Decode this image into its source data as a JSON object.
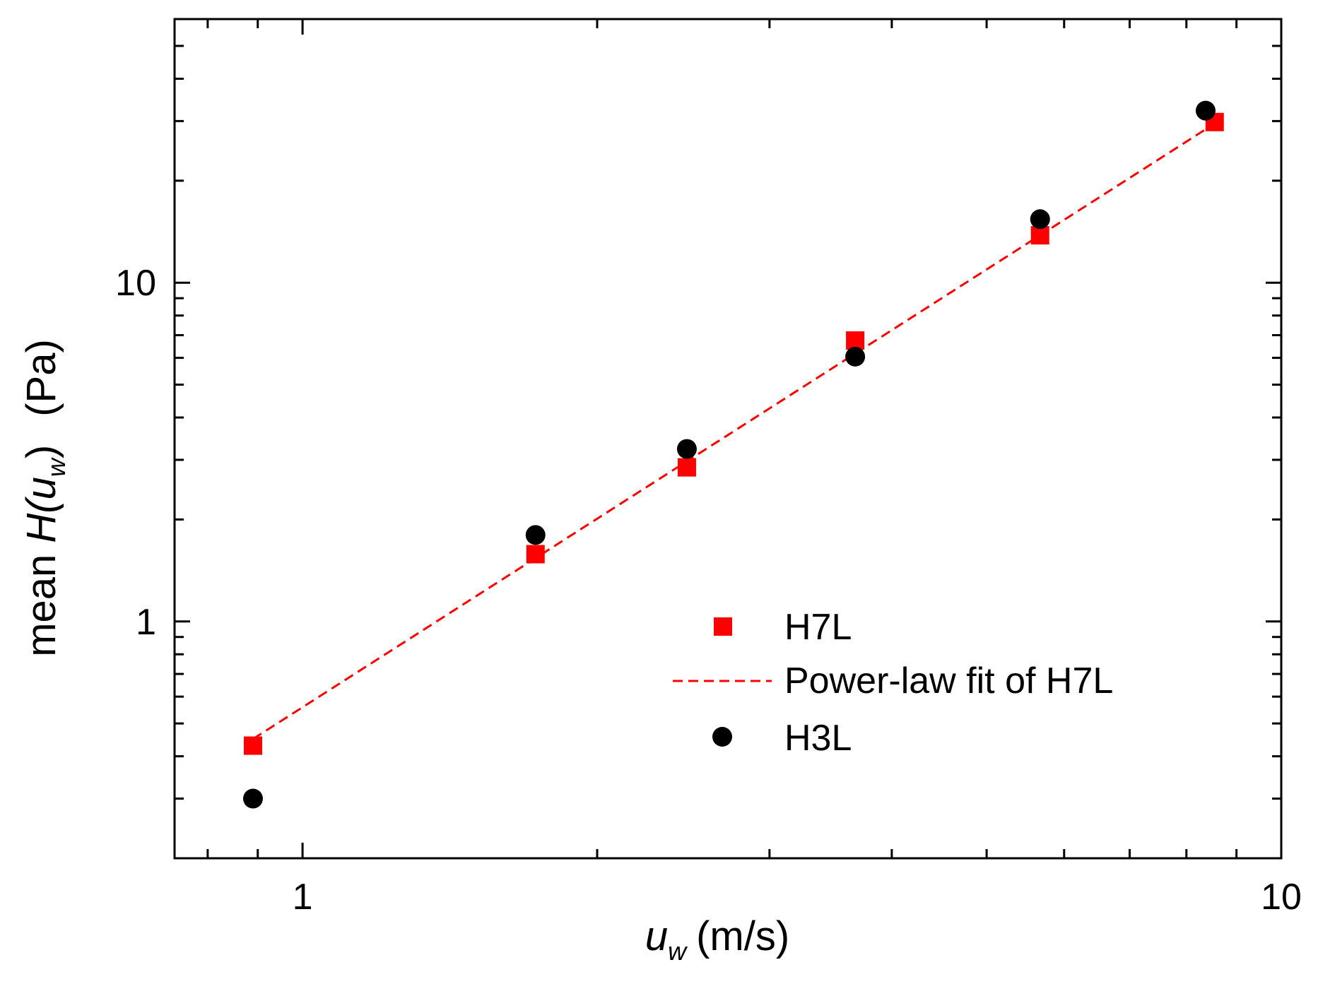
{
  "chart_data": {
    "type": "scatter",
    "xscale": "log",
    "yscale": "log",
    "xlim": [
      0.74,
      10
    ],
    "ylim": [
      0.2,
      60
    ],
    "xlabel": {
      "symbol": "u",
      "subscript": "w",
      "unit": "(m/s)"
    },
    "ylabel": {
      "prefix": "mean ",
      "func": "H(",
      "symbol": "u",
      "subscript": "w",
      "close": ")",
      "unit": "(Pa)"
    },
    "x_tick_labels": [
      {
        "value": 1,
        "label": "1"
      },
      {
        "value": 10,
        "label": "10"
      }
    ],
    "y_tick_labels": [
      {
        "value": 1,
        "label": "1"
      },
      {
        "value": 10,
        "label": "10"
      }
    ],
    "legend_position": "bottom-right",
    "series": [
      {
        "name": "H7L",
        "marker": "square",
        "color": "#ff0000",
        "x": [
          0.89,
          1.73,
          2.47,
          3.67,
          5.67,
          8.55
        ],
        "y": [
          0.43,
          1.58,
          2.85,
          6.75,
          13.8,
          29.8
        ]
      },
      {
        "name": "Power-law fit of H7L",
        "line": "dashed",
        "color": "#ff0000",
        "x": [
          0.89,
          8.55
        ],
        "y": [
          0.45,
          29.5
        ]
      },
      {
        "name": "H3L",
        "marker": "circle",
        "color": "#000000",
        "x": [
          0.89,
          1.73,
          2.47,
          3.67,
          5.67,
          8.37
        ],
        "y": [
          0.3,
          1.8,
          3.23,
          6.05,
          15.4,
          32.2
        ]
      }
    ]
  }
}
